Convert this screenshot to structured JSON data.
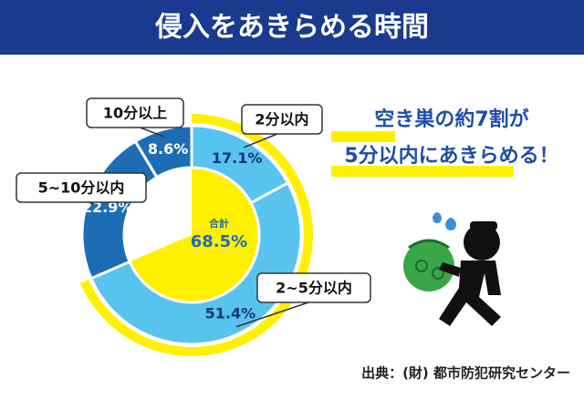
{
  "chart_data": {
    "type": "pie",
    "title": "侵入をあきらめる時間",
    "categories": [
      "2分以内",
      "2~5分以内",
      "5~10分以内",
      "10分以上"
    ],
    "values": [
      17.1,
      51.4,
      22.9,
      8.6
    ],
    "value_labels": [
      "17.1%",
      "51.4%",
      "22.9%",
      "8.6%"
    ],
    "colors": [
      "#58c3ee",
      "#58c3ee",
      "#1d6db4",
      "#1d6db4"
    ],
    "total_label": "合計",
    "total_value": 68.5,
    "total_value_label": "68.5%",
    "total_color": "#fff000",
    "callout": [
      "空き巣の約7割が",
      "5分以内にあきらめる！"
    ],
    "source": "出典：(財) 都市防犯研究センター"
  }
}
